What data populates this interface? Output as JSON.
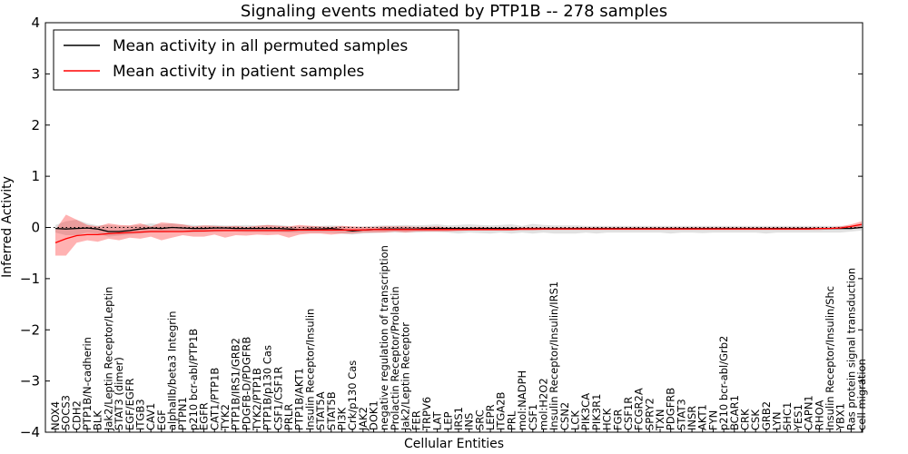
{
  "chart_data": {
    "type": "line",
    "title": "Signaling events mediated by PTP1B -- 278 samples",
    "xlabel": "Cellular Entities",
    "ylabel": "Inferred Activity",
    "ylim": [
      -4,
      4
    ],
    "yticks": [
      "4",
      "3",
      "2",
      "1",
      "0",
      "−1",
      "−2",
      "−3",
      "−4"
    ],
    "legend_position": "top-left",
    "categories": [
      "NOX4",
      "SOCS3",
      "CDH2",
      "PTP1B/N-cadherin",
      "BLK",
      "Jak2/Leptin Receptor/Leptin",
      "STAT3 (dimer)",
      "EGF/EGFR",
      "ITGB3",
      "CAV1",
      "EGF",
      "alphaIIb/beta3 Integrin",
      "PTPN1",
      "p210 bcr-abl/PTP1B",
      "EGFR",
      "CAT1/PTP1B",
      "TYK2",
      "PTP1B/IRS1/GRB2",
      "PDGFB-D/PDGFRB",
      "TYK2/PTP1B",
      "PTP1B/p130 Cas",
      "CSF1/CSF1R",
      "PRLR",
      "PTP1B/AKT1",
      "Insulin Receptor/Insulin",
      "STAT5A",
      "STAT5B",
      "PI3K",
      "Crk/p130 Cas",
      "JAK2",
      "DOK1",
      "negative regulation of transcription",
      "Prolactin Receptor/Prolactin",
      "Jak2/Leptin Receptor",
      "FER",
      "TRPV6",
      "LAT",
      "LEP",
      "IRS1",
      "INS",
      "SRC",
      "LEPR",
      "ITGA2B",
      "PRL",
      "mol:NADPH",
      "CSF1",
      "mol:H2O2",
      "Insulin Receptor/Insulin/IRS1",
      "CSN2",
      "LCK",
      "PIK3CA",
      "PIK3R1",
      "HCK",
      "FGR",
      "CSF1R",
      "FCGR2A",
      "SPRY2",
      "TXN",
      "PDGFRB",
      "STAT3",
      "INSR",
      "AKT1",
      "FYN",
      "p210 bcr-abl/Grb2",
      "BCAR1",
      "CRK",
      "CSK",
      "GRB2",
      "LYN",
      "SHC1",
      "YES1",
      "CAPN1",
      "RHOA",
      "Insulin Receptor/Insulin/Shc",
      "YBX1",
      "Ras protein signal transduction",
      "cell migration"
    ],
    "series": [
      {
        "name": "Mean activity in all permuted samples",
        "color": "#000000",
        "values": [
          -0.02,
          -0.03,
          -0.02,
          -0.01,
          -0.03,
          -0.08,
          -0.08,
          -0.06,
          -0.03,
          -0.01,
          -0.02,
          0.0,
          -0.01,
          -0.02,
          -0.02,
          -0.01,
          -0.01,
          -0.02,
          -0.02,
          -0.02,
          -0.02,
          -0.02,
          -0.03,
          -0.04,
          -0.03,
          -0.03,
          -0.02,
          -0.04,
          -0.07,
          -0.05,
          -0.04,
          -0.03,
          -0.03,
          -0.03,
          -0.03,
          -0.02,
          -0.02,
          -0.02,
          -0.02,
          -0.02,
          -0.02,
          -0.02,
          -0.02,
          -0.02,
          -0.02,
          -0.02,
          -0.02,
          -0.02,
          -0.02,
          -0.02,
          -0.02,
          -0.02,
          -0.02,
          -0.02,
          -0.02,
          -0.02,
          -0.02,
          -0.02,
          -0.02,
          -0.02,
          -0.02,
          -0.02,
          -0.02,
          -0.02,
          -0.02,
          -0.02,
          -0.02,
          -0.02,
          -0.02,
          -0.02,
          -0.02,
          -0.02,
          -0.02,
          -0.02,
          -0.02,
          -0.02,
          0.0
        ],
        "band_upper": [
          0.05,
          0.12,
          0.15,
          0.08,
          0.04,
          0.05,
          0.03,
          0.03,
          0.05,
          0.08,
          0.06,
          0.08,
          0.06,
          0.05,
          0.04,
          0.05,
          0.04,
          0.04,
          0.05,
          0.04,
          0.05,
          0.05,
          0.03,
          0.02,
          0.03,
          0.03,
          0.04,
          0.03,
          0.01,
          0.02,
          0.03,
          0.04,
          0.04,
          0.05,
          0.04,
          0.05,
          0.06,
          0.04,
          0.05,
          0.06,
          0.05,
          0.04,
          0.05,
          0.06,
          0.03,
          0.07,
          0.05,
          0.04,
          0.04,
          0.04,
          0.03,
          0.03,
          0.03,
          0.03,
          0.03,
          0.03,
          0.03,
          0.03,
          0.03,
          0.03,
          0.03,
          0.03,
          0.03,
          0.03,
          0.03,
          0.03,
          0.03,
          0.03,
          0.03,
          0.03,
          0.03,
          0.03,
          0.03,
          0.03,
          0.03,
          0.03,
          0.06
        ],
        "band_lower": [
          -0.1,
          -0.15,
          -0.15,
          -0.1,
          -0.12,
          -0.18,
          -0.16,
          -0.14,
          -0.12,
          -0.1,
          -0.1,
          -0.09,
          -0.09,
          -0.1,
          -0.09,
          -0.09,
          -0.08,
          -0.08,
          -0.09,
          -0.09,
          -0.09,
          -0.09,
          -0.1,
          -0.1,
          -0.1,
          -0.1,
          -0.1,
          -0.12,
          -0.14,
          -0.12,
          -0.11,
          -0.1,
          -0.1,
          -0.1,
          -0.1,
          -0.09,
          -0.09,
          -0.1,
          -0.12,
          -0.1,
          -0.11,
          -0.12,
          -0.1,
          -0.12,
          -0.1,
          -0.12,
          -0.1,
          -0.12,
          -0.12,
          -0.12,
          -0.1,
          -0.12,
          -0.1,
          -0.1,
          -0.1,
          -0.1,
          -0.1,
          -0.1,
          -0.12,
          -0.1,
          -0.1,
          -0.11,
          -0.1,
          -0.1,
          -0.1,
          -0.1,
          -0.1,
          -0.12,
          -0.1,
          -0.1,
          -0.1,
          -0.1,
          -0.1,
          -0.1,
          -0.1,
          -0.08,
          -0.06
        ]
      },
      {
        "name": "Mean activity in patient samples",
        "color": "#ff0000",
        "values": [
          -0.3,
          -0.22,
          -0.16,
          -0.14,
          -0.14,
          -0.12,
          -0.11,
          -0.1,
          -0.09,
          -0.08,
          -0.08,
          -0.08,
          -0.08,
          -0.07,
          -0.07,
          -0.06,
          -0.06,
          -0.06,
          -0.06,
          -0.06,
          -0.06,
          -0.06,
          -0.06,
          -0.05,
          -0.05,
          -0.05,
          -0.05,
          -0.05,
          -0.05,
          -0.05,
          -0.04,
          -0.04,
          -0.04,
          -0.04,
          -0.04,
          -0.04,
          -0.04,
          -0.04,
          -0.04,
          -0.04,
          -0.04,
          -0.04,
          -0.04,
          -0.04,
          -0.03,
          -0.03,
          -0.03,
          -0.03,
          -0.03,
          -0.03,
          -0.03,
          -0.03,
          -0.03,
          -0.03,
          -0.03,
          -0.03,
          -0.03,
          -0.03,
          -0.03,
          -0.03,
          -0.03,
          -0.03,
          -0.03,
          -0.03,
          -0.03,
          -0.03,
          -0.03,
          -0.03,
          -0.03,
          -0.03,
          -0.03,
          -0.03,
          -0.02,
          -0.02,
          -0.01,
          0.02,
          0.06
        ],
        "band_upper": [
          -0.05,
          0.25,
          0.15,
          0.05,
          0.02,
          0.08,
          0.05,
          0.04,
          0.08,
          0.02,
          0.1,
          0.08,
          0.06,
          0.02,
          0.04,
          0.03,
          0.02,
          0.03,
          0.01,
          0.03,
          0.05,
          0.03,
          0.02,
          0.05,
          0.03,
          0.02,
          0.01,
          0.03,
          0.02,
          0.01,
          0.01,
          0.02,
          0.02,
          0.02,
          0.01,
          0.01,
          0.02,
          0.0,
          0.0,
          0.0,
          0.01,
          0.0,
          0.0,
          0.0,
          0.0,
          0.0,
          0.0,
          0.0,
          0.0,
          0.0,
          0.0,
          0.0,
          0.0,
          0.0,
          0.0,
          0.0,
          0.0,
          0.0,
          0.0,
          0.0,
          0.0,
          0.0,
          0.0,
          0.0,
          0.0,
          0.0,
          0.0,
          0.0,
          0.0,
          0.0,
          0.0,
          0.0,
          0.0,
          0.0,
          0.02,
          0.06,
          0.12
        ],
        "band_lower": [
          -0.55,
          -0.55,
          -0.3,
          -0.25,
          -0.28,
          -0.22,
          -0.25,
          -0.2,
          -0.22,
          -0.18,
          -0.25,
          -0.2,
          -0.15,
          -0.18,
          -0.18,
          -0.14,
          -0.2,
          -0.15,
          -0.16,
          -0.14,
          -0.15,
          -0.14,
          -0.2,
          -0.14,
          -0.12,
          -0.12,
          -0.14,
          -0.12,
          -0.12,
          -0.1,
          -0.1,
          -0.1,
          -0.08,
          -0.1,
          -0.08,
          -0.08,
          -0.08,
          -0.08,
          -0.07,
          -0.06,
          -0.06,
          -0.06,
          -0.06,
          -0.06,
          -0.06,
          -0.06,
          -0.05,
          -0.05,
          -0.05,
          -0.05,
          -0.05,
          -0.05,
          -0.05,
          -0.05,
          -0.05,
          -0.05,
          -0.05,
          -0.05,
          -0.05,
          -0.05,
          -0.05,
          -0.05,
          -0.05,
          -0.05,
          -0.05,
          -0.05,
          -0.05,
          -0.05,
          -0.05,
          -0.05,
          -0.05,
          -0.05,
          -0.05,
          -0.04,
          -0.03,
          -0.02,
          0.0
        ]
      }
    ]
  }
}
